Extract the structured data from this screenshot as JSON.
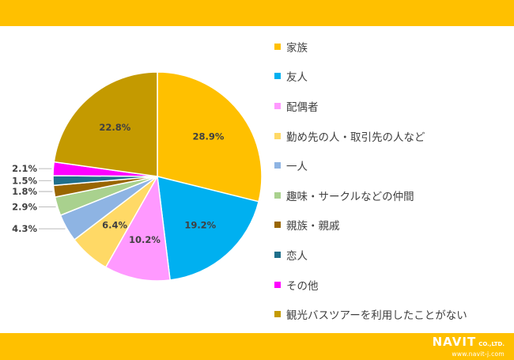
{
  "theme": {
    "band_color": "#FFC000"
  },
  "branding": {
    "logo_text": "NAVIT",
    "company_suffix": "CO.,LTD.",
    "url": "www.navit-j.com"
  },
  "chart_data": {
    "type": "pie",
    "slices": [
      {
        "label": "家族",
        "value": 28.9,
        "value_label": "28.9%",
        "color": "#FFC000"
      },
      {
        "label": "友人",
        "value": 19.2,
        "value_label": "19.2%",
        "color": "#00B0F0"
      },
      {
        "label": "配偶者",
        "value": 10.2,
        "value_label": "10.2%",
        "color": "#FF99FF"
      },
      {
        "label": "勤め先の人・取引先の人など",
        "value": 6.4,
        "value_label": "6.4%",
        "color": "#FFD966"
      },
      {
        "label": "一人",
        "value": 4.3,
        "value_label": "4.3%",
        "color": "#8EB4E3"
      },
      {
        "label": "趣味・サークルなどの仲間",
        "value": 2.9,
        "value_label": "2.9%",
        "color": "#A9D18E"
      },
      {
        "label": "親族・親戚",
        "value": 1.8,
        "value_label": "1.8%",
        "color": "#996600"
      },
      {
        "label": "恋人",
        "value": 1.5,
        "value_label": "1.5%",
        "color": "#1F6F8B"
      },
      {
        "label": "その他",
        "value": 2.1,
        "value_label": "2.1%",
        "color": "#FF00FF"
      },
      {
        "label": "観光バスツアーを利用したことがない",
        "value": 22.8,
        "value_label": "22.8%",
        "color": "#C49A00"
      }
    ],
    "start": "12 o'clock",
    "direction": "clockwise",
    "legend_position": "right",
    "title": ""
  }
}
